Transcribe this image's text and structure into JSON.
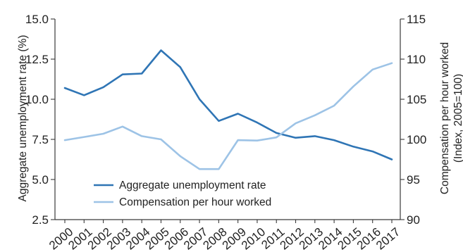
{
  "chart_data": {
    "type": "line",
    "title": "",
    "x": [
      "2000",
      "2001",
      "2002",
      "2003",
      "2004",
      "2005",
      "2006",
      "2007",
      "2008",
      "2009",
      "2010",
      "2011",
      "2012",
      "2013",
      "2014",
      "2015",
      "2016",
      "2017"
    ],
    "xlabel": "",
    "y_left": {
      "label": "Aggregate unemployment rate (%)",
      "ylim": [
        2.5,
        15.0
      ],
      "ticks": [
        "2.5",
        "5.0",
        "7.5",
        "10.0",
        "12.5",
        "15.0"
      ]
    },
    "y_right": {
      "label_line1": "Compensation per hour worked",
      "label_line2": "(Index, 2005=100)",
      "ylim": [
        90,
        115
      ],
      "ticks": [
        "90",
        "95",
        "100",
        "105",
        "110",
        "115"
      ]
    },
    "series": [
      {
        "name": "Aggregate unemployment rate",
        "axis": "left",
        "color": "#2f75b5",
        "values": [
          10.7,
          10.25,
          10.75,
          11.55,
          11.6,
          13.05,
          12.0,
          10.0,
          8.65,
          9.1,
          8.55,
          7.9,
          7.6,
          7.7,
          7.45,
          7.05,
          6.75,
          6.25
        ]
      },
      {
        "name": "Compensation per hour worked",
        "axis": "right",
        "color": "#9dc3e6",
        "values": [
          99.9,
          100.3,
          100.7,
          101.6,
          100.4,
          100.0,
          97.9,
          96.3,
          96.3,
          99.9,
          99.85,
          100.25,
          102.0,
          103.0,
          104.2,
          106.6,
          108.7,
          109.5
        ]
      }
    ],
    "legend": "bottom-left",
    "grid": false
  }
}
